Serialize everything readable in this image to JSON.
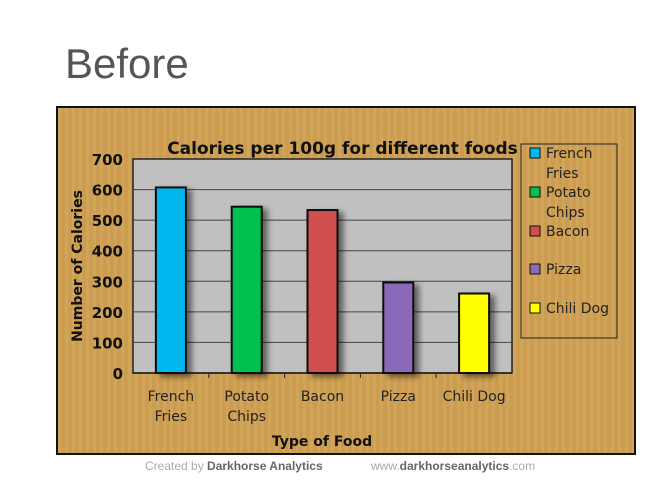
{
  "heading": "Before",
  "chart_data": {
    "type": "bar",
    "title": "Calories per 100g for different foods",
    "xlabel": "Type of Food",
    "ylabel": "Number of Calories",
    "categories": [
      "French Fries",
      "Potato Chips",
      "Bacon",
      "Pizza",
      "Chili Dog"
    ],
    "values": [
      607,
      544,
      533,
      296,
      260
    ],
    "colors": [
      "#00b8f0",
      "#00c050",
      "#d05050",
      "#8a6ab8",
      "#ffff00"
    ],
    "ylim": [
      0,
      700
    ],
    "yticks": [
      0,
      100,
      200,
      300,
      400,
      500,
      600,
      700
    ],
    "grid": true,
    "legend": "right",
    "plot_background": "#c0c0c0"
  },
  "footer": {
    "created_prefix": "Created by ",
    "created_brand": "Darkhorse Analytics",
    "url_prefix": "www.",
    "url_brand": "darkhorseanalytics",
    ".com": ".com",
    "url_suffix": ".com"
  }
}
